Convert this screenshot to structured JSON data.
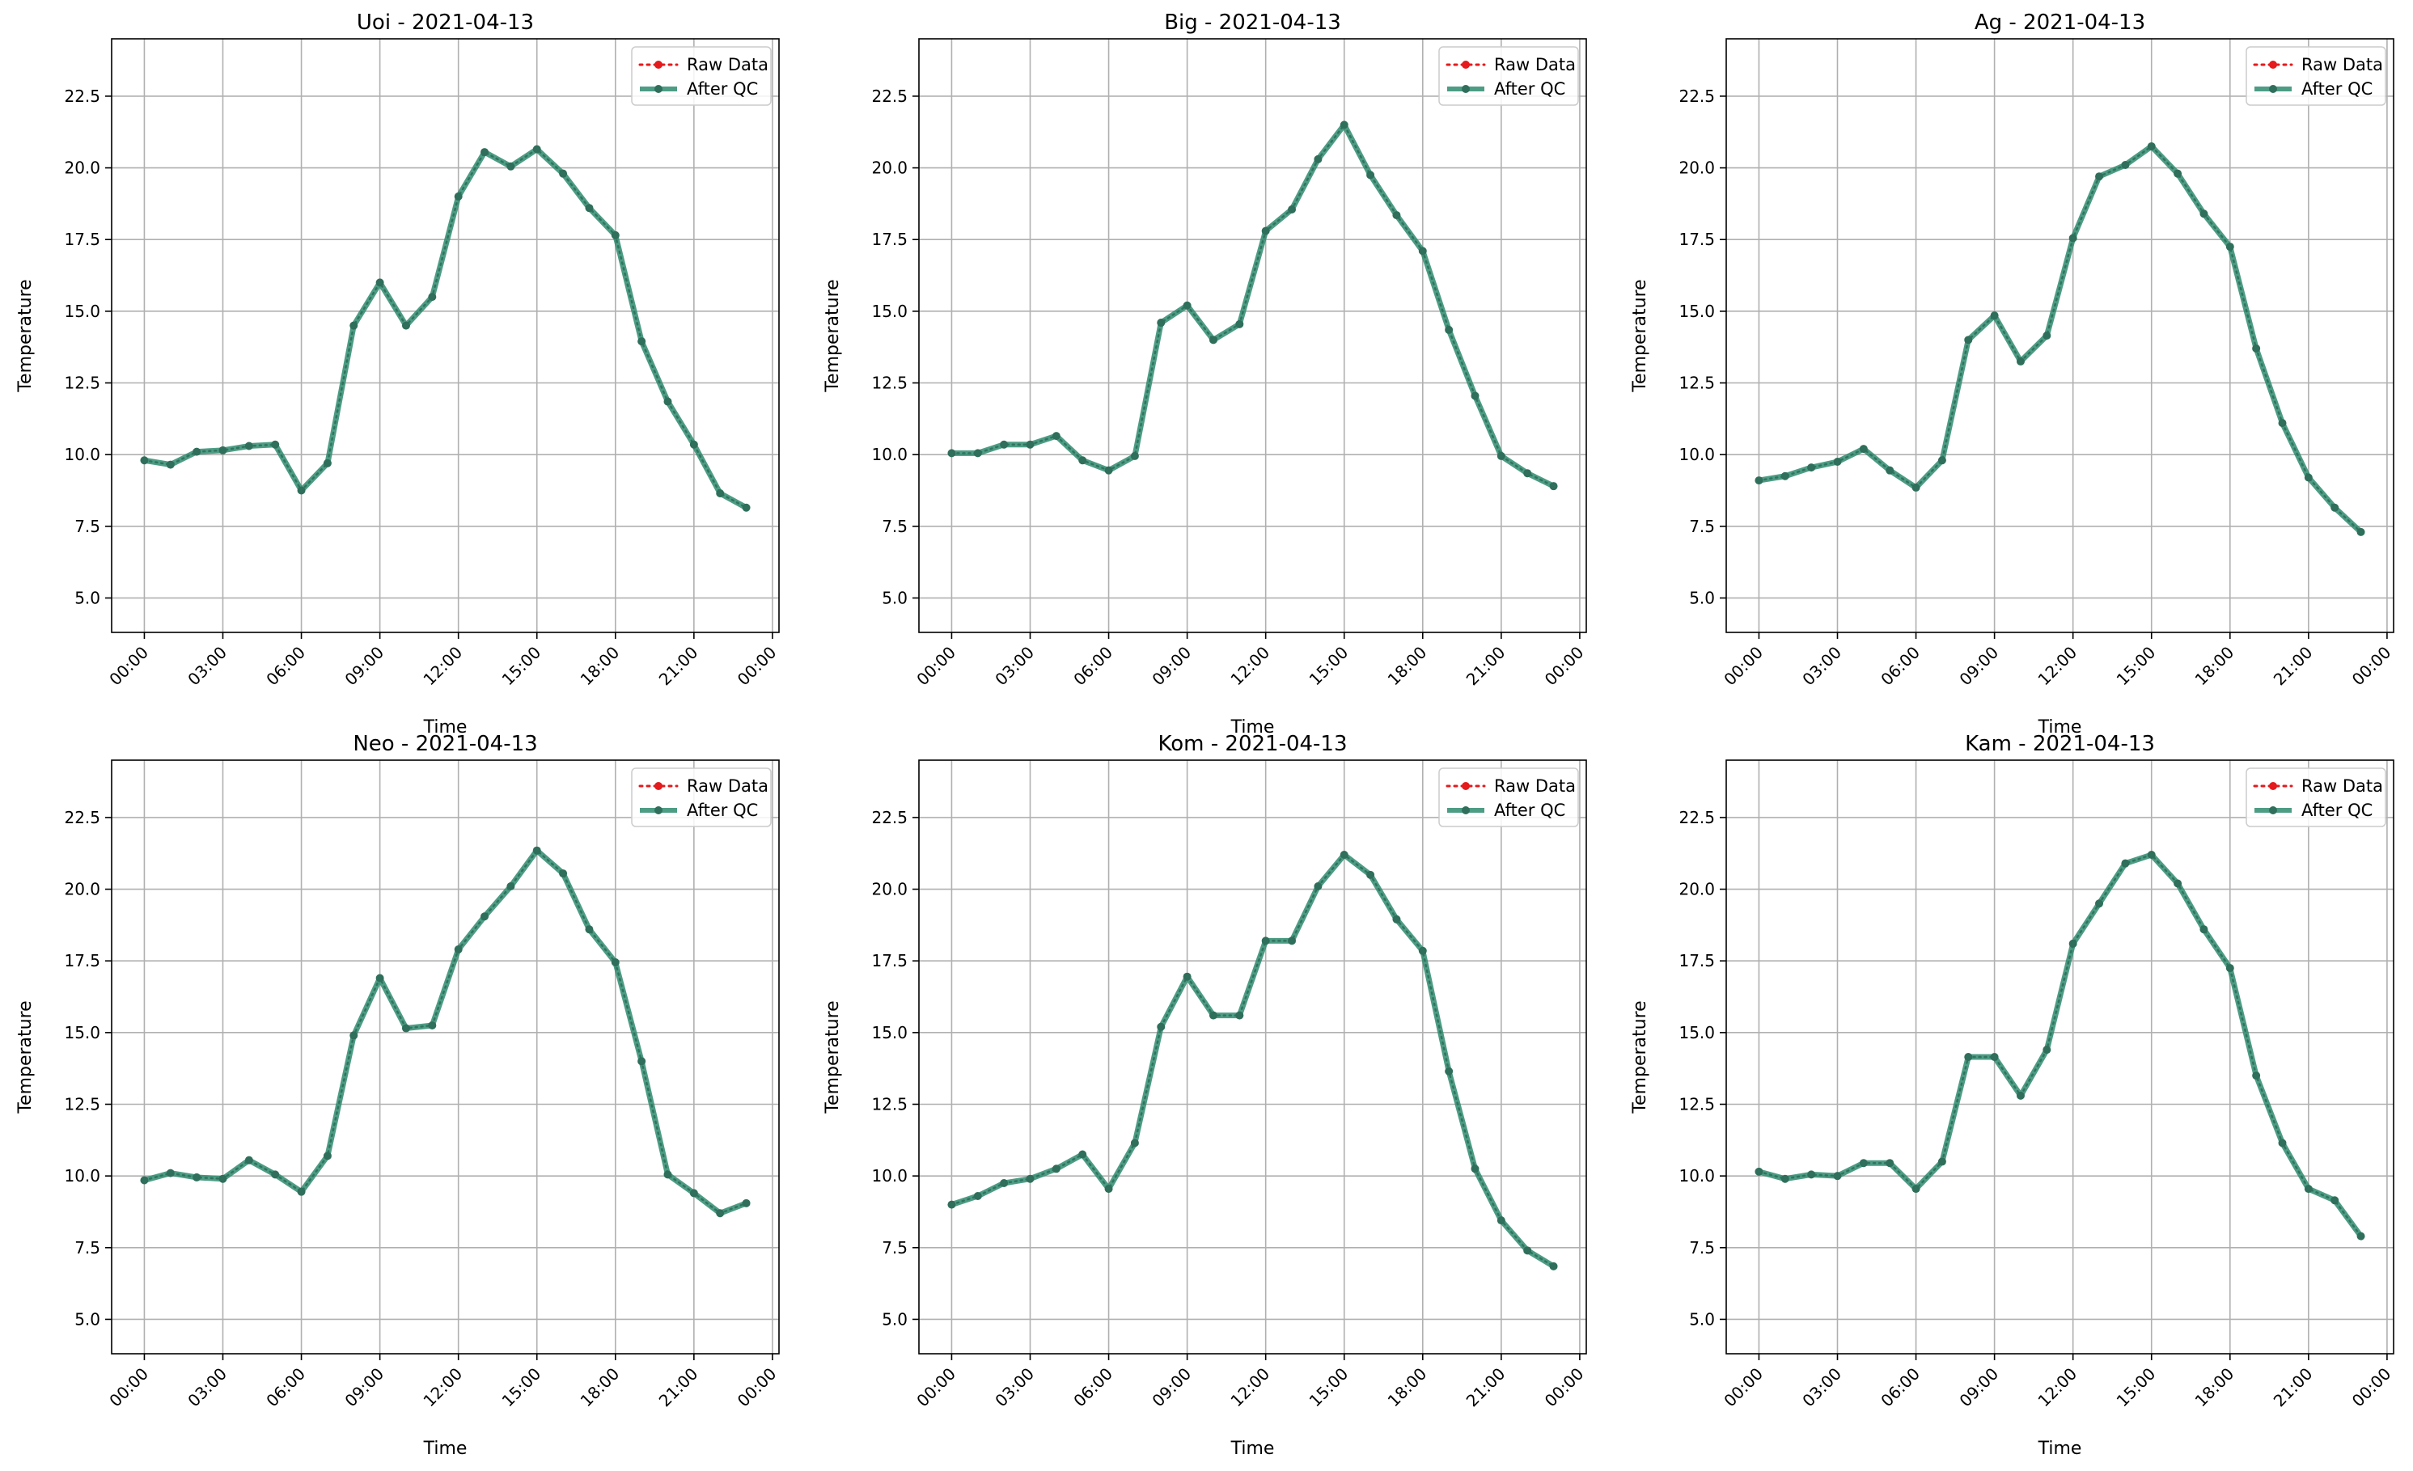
{
  "figure": {
    "legend_labels": [
      "Raw Data",
      "After QC"
    ],
    "colors": {
      "raw": "#e41a1c",
      "qc": "#2e8b6f",
      "qc_marker": "#2f6f5b",
      "grid": "#b0b0b0"
    }
  },
  "chart_data": [
    {
      "type": "line",
      "title": "Uoi - 2021-04-13",
      "xlabel": "Time",
      "ylabel": "Temperature",
      "ylim": [
        3.8,
        24.5
      ],
      "yticks": [
        "5.0",
        "7.5",
        "10.0",
        "12.5",
        "15.0",
        "17.5",
        "20.0",
        "22.5"
      ],
      "xticks": [
        "00:00",
        "03:00",
        "06:00",
        "09:00",
        "12:00",
        "15:00",
        "18:00",
        "21:00",
        "00:00"
      ],
      "grid": true,
      "legend": "top-right",
      "x_hours": [
        0,
        1,
        2,
        3,
        4,
        5,
        6,
        7,
        8,
        9,
        10,
        11,
        12,
        13,
        14,
        15,
        16,
        17,
        18,
        19,
        20,
        21,
        22,
        23
      ],
      "series": [
        {
          "name": "Raw Data",
          "values": [
            9.8,
            9.65,
            10.1,
            10.15,
            10.3,
            10.35,
            8.75,
            9.7,
            14.5,
            16.0,
            14.5,
            15.5,
            19.0,
            20.55,
            20.05,
            20.65,
            19.8,
            18.6,
            17.65,
            13.95,
            11.85,
            10.35,
            8.65,
            8.15
          ]
        },
        {
          "name": "After QC",
          "values": [
            9.8,
            9.65,
            10.1,
            10.15,
            10.3,
            10.35,
            8.75,
            9.7,
            14.5,
            16.0,
            14.5,
            15.5,
            19.0,
            20.55,
            20.05,
            20.65,
            19.8,
            18.6,
            17.65,
            13.95,
            11.85,
            10.35,
            8.65,
            8.15
          ]
        }
      ]
    },
    {
      "type": "line",
      "title": "Big - 2021-04-13",
      "xlabel": "Time",
      "ylabel": "Temperature",
      "ylim": [
        3.8,
        24.5
      ],
      "yticks": [
        "5.0",
        "7.5",
        "10.0",
        "12.5",
        "15.0",
        "17.5",
        "20.0",
        "22.5"
      ],
      "xticks": [
        "00:00",
        "03:00",
        "06:00",
        "09:00",
        "12:00",
        "15:00",
        "18:00",
        "21:00",
        "00:00"
      ],
      "grid": true,
      "legend": "top-right",
      "x_hours": [
        0,
        1,
        2,
        3,
        4,
        5,
        6,
        7,
        8,
        9,
        10,
        11,
        12,
        13,
        14,
        15,
        16,
        17,
        18,
        19,
        20,
        21,
        22,
        23
      ],
      "series": [
        {
          "name": "Raw Data",
          "values": [
            10.05,
            10.05,
            10.35,
            10.35,
            10.65,
            9.8,
            9.45,
            9.95,
            14.6,
            15.2,
            14.0,
            14.55,
            17.8,
            18.55,
            20.3,
            21.5,
            19.75,
            18.35,
            17.1,
            14.35,
            12.05,
            9.95,
            9.35,
            8.9
          ]
        },
        {
          "name": "After QC",
          "values": [
            10.05,
            10.05,
            10.35,
            10.35,
            10.65,
            9.8,
            9.45,
            9.95,
            14.6,
            15.2,
            14.0,
            14.55,
            17.8,
            18.55,
            20.3,
            21.5,
            19.75,
            18.35,
            17.1,
            14.35,
            12.05,
            9.95,
            9.35,
            8.9
          ]
        }
      ]
    },
    {
      "type": "line",
      "title": "Ag - 2021-04-13",
      "xlabel": "Time",
      "ylabel": "Temperature",
      "ylim": [
        3.8,
        24.5
      ],
      "yticks": [
        "5.0",
        "7.5",
        "10.0",
        "12.5",
        "15.0",
        "17.5",
        "20.0",
        "22.5"
      ],
      "xticks": [
        "00:00",
        "03:00",
        "06:00",
        "09:00",
        "12:00",
        "15:00",
        "18:00",
        "21:00",
        "00:00"
      ],
      "grid": true,
      "legend": "top-right",
      "x_hours": [
        0,
        1,
        2,
        3,
        4,
        5,
        6,
        7,
        8,
        9,
        10,
        11,
        12,
        13,
        14,
        15,
        16,
        17,
        18,
        19,
        20,
        21,
        22,
        23
      ],
      "series": [
        {
          "name": "Raw Data",
          "values": [
            9.1,
            9.25,
            9.55,
            9.75,
            10.2,
            9.45,
            8.85,
            9.8,
            14.0,
            14.85,
            13.25,
            14.15,
            17.55,
            19.7,
            20.1,
            20.75,
            19.8,
            18.4,
            17.25,
            13.7,
            11.1,
            9.2,
            8.15,
            7.3
          ]
        },
        {
          "name": "After QC",
          "values": [
            9.1,
            9.25,
            9.55,
            9.75,
            10.2,
            9.45,
            8.85,
            9.8,
            14.0,
            14.85,
            13.25,
            14.15,
            17.55,
            19.7,
            20.1,
            20.75,
            19.8,
            18.4,
            17.25,
            13.7,
            11.1,
            9.2,
            8.15,
            7.3
          ]
        }
      ]
    },
    {
      "type": "line",
      "title": "Neo - 2021-04-13",
      "xlabel": "Time",
      "ylabel": "Temperature",
      "ylim": [
        3.8,
        24.5
      ],
      "yticks": [
        "5.0",
        "7.5",
        "10.0",
        "12.5",
        "15.0",
        "17.5",
        "20.0",
        "22.5"
      ],
      "xticks": [
        "00:00",
        "03:00",
        "06:00",
        "09:00",
        "12:00",
        "15:00",
        "18:00",
        "21:00",
        "00:00"
      ],
      "grid": true,
      "legend": "top-right",
      "x_hours": [
        0,
        1,
        2,
        3,
        4,
        5,
        6,
        7,
        8,
        9,
        10,
        11,
        12,
        13,
        14,
        15,
        16,
        17,
        18,
        19,
        20,
        21,
        22,
        23
      ],
      "series": [
        {
          "name": "Raw Data",
          "values": [
            9.85,
            10.1,
            9.95,
            9.9,
            10.55,
            10.05,
            9.45,
            10.7,
            14.9,
            16.9,
            15.15,
            15.25,
            17.9,
            19.05,
            20.1,
            21.35,
            20.55,
            18.6,
            17.45,
            14.0,
            10.05,
            9.4,
            8.7,
            9.05
          ]
        },
        {
          "name": "After QC",
          "values": [
            9.85,
            10.1,
            9.95,
            9.9,
            10.55,
            10.05,
            9.45,
            10.7,
            14.9,
            16.9,
            15.15,
            15.25,
            17.9,
            19.05,
            20.1,
            21.35,
            20.55,
            18.6,
            17.45,
            14.0,
            10.05,
            9.4,
            8.7,
            9.05
          ]
        }
      ]
    },
    {
      "type": "line",
      "title": "Kom - 2021-04-13",
      "xlabel": "Time",
      "ylabel": "Temperature",
      "ylim": [
        3.8,
        24.5
      ],
      "yticks": [
        "5.0",
        "7.5",
        "10.0",
        "12.5",
        "15.0",
        "17.5",
        "20.0",
        "22.5"
      ],
      "xticks": [
        "00:00",
        "03:00",
        "06:00",
        "09:00",
        "12:00",
        "15:00",
        "18:00",
        "21:00",
        "00:00"
      ],
      "grid": true,
      "legend": "top-right",
      "x_hours": [
        0,
        1,
        2,
        3,
        4,
        5,
        6,
        7,
        8,
        9,
        10,
        11,
        12,
        13,
        14,
        15,
        16,
        17,
        18,
        19,
        20,
        21,
        22,
        23
      ],
      "series": [
        {
          "name": "Raw Data",
          "values": [
            9.0,
            9.3,
            9.75,
            9.9,
            10.25,
            10.75,
            9.55,
            11.15,
            15.2,
            16.95,
            15.6,
            15.6,
            18.2,
            18.2,
            20.1,
            21.2,
            20.5,
            18.95,
            17.85,
            13.65,
            10.25,
            8.45,
            7.4,
            6.85
          ]
        },
        {
          "name": "After QC",
          "values": [
            9.0,
            9.3,
            9.75,
            9.9,
            10.25,
            10.75,
            9.55,
            11.15,
            15.2,
            16.95,
            15.6,
            15.6,
            18.2,
            18.2,
            20.1,
            21.2,
            20.5,
            18.95,
            17.85,
            13.65,
            10.25,
            8.45,
            7.4,
            6.85
          ]
        }
      ]
    },
    {
      "type": "line",
      "title": "Kam - 2021-04-13",
      "xlabel": "Time",
      "ylabel": "Temperature",
      "ylim": [
        3.8,
        24.5
      ],
      "yticks": [
        "5.0",
        "7.5",
        "10.0",
        "12.5",
        "15.0",
        "17.5",
        "20.0",
        "22.5"
      ],
      "xticks": [
        "00:00",
        "03:00",
        "06:00",
        "09:00",
        "12:00",
        "15:00",
        "18:00",
        "21:00",
        "00:00"
      ],
      "grid": true,
      "legend": "top-right",
      "x_hours": [
        0,
        1,
        2,
        3,
        4,
        5,
        6,
        7,
        8,
        9,
        10,
        11,
        12,
        13,
        14,
        15,
        16,
        17,
        18,
        19,
        20,
        21,
        22,
        23
      ],
      "series": [
        {
          "name": "Raw Data",
          "values": [
            10.15,
            9.9,
            10.05,
            10.0,
            10.45,
            10.45,
            9.55,
            10.5,
            14.15,
            14.15,
            12.8,
            14.4,
            18.1,
            19.5,
            20.9,
            21.2,
            20.2,
            18.6,
            17.25,
            13.5,
            11.15,
            9.55,
            9.15,
            7.9
          ]
        },
        {
          "name": "After QC",
          "values": [
            10.15,
            9.9,
            10.05,
            10.0,
            10.45,
            10.45,
            9.55,
            10.5,
            14.15,
            14.15,
            12.8,
            14.4,
            18.1,
            19.5,
            20.9,
            21.2,
            20.2,
            18.6,
            17.25,
            13.5,
            11.15,
            9.55,
            9.15,
            7.9
          ]
        }
      ]
    }
  ]
}
